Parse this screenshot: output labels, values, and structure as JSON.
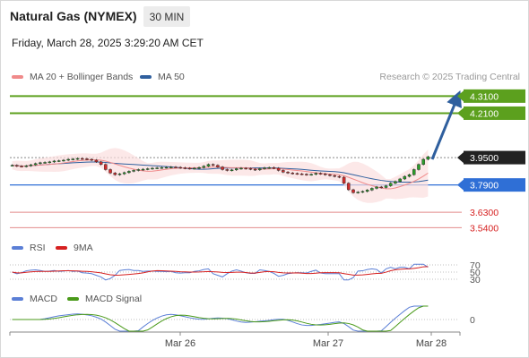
{
  "header": {
    "title": "Natural Gas (NYMEX)",
    "timeframe": "30 MIN",
    "datetime": "Friday, March 28, 2025 3:29:20 AM CET"
  },
  "legend": {
    "ma20": {
      "label": "MA 20 + Bollinger Bands",
      "color": "#f08a8a"
    },
    "ma50": {
      "label": "MA 50",
      "color": "#2f5f9e"
    },
    "credit": "Research © 2025 Trading Central"
  },
  "rsi_legend": {
    "rsi": {
      "label": "RSI",
      "color": "#5b7fd6"
    },
    "ma": {
      "label": "9MA",
      "color": "#d62020"
    }
  },
  "macd_legend": {
    "macd": {
      "label": "MACD",
      "color": "#5b7fd6"
    },
    "signal": {
      "label": "MACD Signal",
      "color": "#4a9a1a"
    }
  },
  "chart_data": {
    "type": "candlestick",
    "x_tick_labels": [
      "Mar 26",
      "Mar 27",
      "Mar 28"
    ],
    "y_range": [
      3.5,
      4.38
    ],
    "levels": [
      {
        "label": "4.3100",
        "value": 4.31,
        "kind": "resistance"
      },
      {
        "label": "4.2100",
        "value": 4.21,
        "kind": "resistance"
      },
      {
        "label": "3.9500",
        "value": 3.95,
        "kind": "current"
      },
      {
        "label": "3.7900",
        "value": 3.79,
        "kind": "pivot"
      },
      {
        "label": "3.6300",
        "value": 3.63,
        "kind": "support"
      },
      {
        "label": "3.5400",
        "value": 3.54,
        "kind": "support"
      }
    ],
    "forecast_arrow": {
      "from": 3.94,
      "to": 4.3
    },
    "rsi_ticks": [
      "70",
      "50",
      "30"
    ],
    "macd_ticks": [
      "0"
    ],
    "closes": [
      3.905,
      3.9,
      3.898,
      3.902,
      3.908,
      3.915,
      3.92,
      3.922,
      3.925,
      3.93,
      3.932,
      3.935,
      3.94,
      3.942,
      3.945,
      3.943,
      3.94,
      3.935,
      3.925,
      3.91,
      3.88,
      3.86,
      3.85,
      3.855,
      3.862,
      3.87,
      3.875,
      3.88,
      3.882,
      3.885,
      3.888,
      3.89,
      3.892,
      3.893,
      3.895,
      3.893,
      3.89,
      3.888,
      3.886,
      3.888,
      3.892,
      3.9,
      3.91,
      3.905,
      3.895,
      3.88,
      3.875,
      3.878,
      3.885,
      3.888,
      3.886,
      3.882,
      3.878,
      3.885,
      3.89,
      3.892,
      3.888,
      3.875,
      3.865,
      3.86,
      3.857,
      3.855,
      3.853,
      3.85,
      3.852,
      3.858,
      3.855,
      3.85,
      3.845,
      3.84,
      3.835,
      3.8,
      3.762,
      3.745,
      3.748,
      3.752,
      3.76,
      3.77,
      3.778,
      3.775,
      3.785,
      3.8,
      3.81,
      3.825,
      3.84,
      3.85,
      3.88,
      3.91,
      3.94,
      3.955
    ]
  }
}
